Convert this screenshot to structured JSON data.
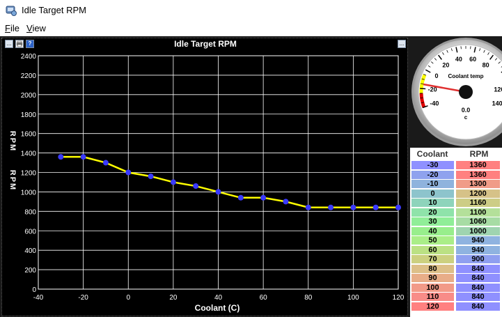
{
  "window": {
    "title": "Idle Target RPM"
  },
  "menu": {
    "file": "File",
    "view": "View"
  },
  "chart_toolbar": {
    "left_icon1": "...",
    "left_icon3": "?",
    "right_icon": "..."
  },
  "chart_data": {
    "type": "line",
    "title": "Idle Target RPM",
    "xlabel": "Coolant (C)",
    "ylabel": "RPM",
    "x": [
      -30,
      -20,
      -10,
      0,
      10,
      20,
      30,
      40,
      50,
      60,
      70,
      80,
      90,
      100,
      110,
      120
    ],
    "series": [
      {
        "values": [
          1360,
          1360,
          1300,
          1200,
          1160,
          1100,
          1060,
          1000,
          940,
          940,
          900,
          840,
          840,
          840,
          840,
          840
        ]
      }
    ],
    "xlim": [
      -40,
      120
    ],
    "ylim": [
      0,
      2400
    ],
    "xticks": [
      -40,
      -20,
      0,
      20,
      40,
      60,
      80,
      100,
      120
    ],
    "yticks": [
      0,
      200,
      400,
      600,
      800,
      1000,
      1200,
      1400,
      1600,
      1800,
      2000,
      2200,
      2400
    ],
    "grid": true,
    "colors": {
      "line": "#ffff00",
      "marker": "#3a3aff",
      "grid": "#ffffff",
      "background": "#000000"
    }
  },
  "gauge": {
    "label": "Coolant temp",
    "value": "0.0",
    "unit": "c",
    "ticks": [
      "-40",
      "-20",
      "0",
      "20",
      "40",
      "60",
      "80",
      "120",
      "140"
    ]
  },
  "table": {
    "headers": [
      "Coolant",
      "RPM"
    ],
    "rows": [
      [
        "-30",
        "1360"
      ],
      [
        "-20",
        "1360"
      ],
      [
        "-10",
        "1300"
      ],
      [
        "0",
        "1200"
      ],
      [
        "10",
        "1160"
      ],
      [
        "20",
        "1100"
      ],
      [
        "30",
        "1060"
      ],
      [
        "40",
        "1000"
      ],
      [
        "50",
        "940"
      ],
      [
        "60",
        "940"
      ],
      [
        "70",
        "900"
      ],
      [
        "80",
        "840"
      ],
      [
        "90",
        "840"
      ],
      [
        "100",
        "840"
      ],
      [
        "110",
        "840"
      ],
      [
        "120",
        "840"
      ]
    ],
    "coolant_colors": [
      "#8f90ff",
      "#8fa2ee",
      "#8fb3dd",
      "#8dc4cc",
      "#8ed4bb",
      "#8fe3aa",
      "#90ee98",
      "#98ee8c",
      "#aaee88",
      "#bbe184",
      "#ccd080",
      "#ddbf88",
      "#e8ad88",
      "#f29a88",
      "#f88c88",
      "#ff8080"
    ],
    "rpm_colors": [
      "#ff8080",
      "#ff8080",
      "#f09c88",
      "#d6c288",
      "#cdcd86",
      "#b4e09a",
      "#a7dca4",
      "#9fd4b0",
      "#8fb3e0",
      "#8fb3e0",
      "#8f9ff0",
      "#8f90ff",
      "#8f90ff",
      "#8f90ff",
      "#8f90ff",
      "#8f90ff"
    ]
  }
}
